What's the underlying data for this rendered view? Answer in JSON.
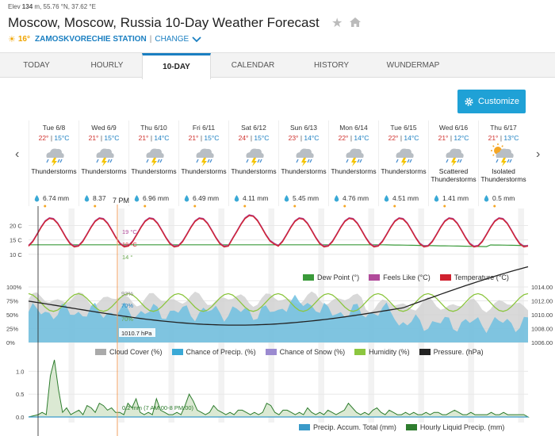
{
  "header": {
    "elev_label": "Elev",
    "elev_value": "134",
    "elev_unit": "m",
    "coords": "55.76 °N, 37.62 °E",
    "title": "Moscow, Moscow, Russia 10-Day Weather Forecast",
    "current_temp": "16°",
    "station": "ZAMOSKVORECHIE STATION",
    "separator": "|",
    "change_label": "CHANGE"
  },
  "tabs": [
    {
      "label": "TODAY"
    },
    {
      "label": "HOURLY"
    },
    {
      "label": "10-DAY"
    },
    {
      "label": "CALENDAR"
    },
    {
      "label": "HISTORY"
    },
    {
      "label": "WUNDERMAP"
    }
  ],
  "customize_label": "Customize",
  "days": [
    {
      "name": "Tue 6/8",
      "hi": "22°",
      "lo": "15°C",
      "cond1": "Thunderstorms",
      "cond2": "",
      "precip": "6.74 mm",
      "icon": "thunderstorm-icon"
    },
    {
      "name": "Wed 6/9",
      "hi": "21°",
      "lo": "15°C",
      "cond1": "Thunderstorms",
      "cond2": "",
      "precip": "8.37",
      "icon": "thunderstorm-icon"
    },
    {
      "name": "Thu 6/10",
      "hi": "21°",
      "lo": "14°C",
      "cond1": "Thunderstorms",
      "cond2": "",
      "precip": "6.96 mm",
      "icon": "thunderstorm-icon"
    },
    {
      "name": "Fri 6/11",
      "hi": "21°",
      "lo": "15°C",
      "cond1": "Thunderstorms",
      "cond2": "",
      "precip": "6.49 mm",
      "icon": "thunderstorm-icon"
    },
    {
      "name": "Sat 6/12",
      "hi": "24°",
      "lo": "15°C",
      "cond1": "Thunderstorms",
      "cond2": "",
      "precip": "4.11 mm",
      "icon": "thunderstorm-icon"
    },
    {
      "name": "Sun 6/13",
      "hi": "23°",
      "lo": "14°C",
      "cond1": "Thunderstorms",
      "cond2": "",
      "precip": "5.45 mm",
      "icon": "thunderstorm-icon"
    },
    {
      "name": "Mon 6/14",
      "hi": "22°",
      "lo": "14°C",
      "cond1": "Thunderstorms",
      "cond2": "",
      "precip": "4.76 mm",
      "icon": "thunderstorm-icon"
    },
    {
      "name": "Tue 6/15",
      "hi": "22°",
      "lo": "14°C",
      "cond1": "Thunderstorms",
      "cond2": "",
      "precip": "4.51 mm",
      "icon": "thunderstorm-icon"
    },
    {
      "name": "Wed 6/16",
      "hi": "21°",
      "lo": "12°C",
      "cond1": "Scattered",
      "cond2": "Thunderstorms",
      "precip": "1.41 mm",
      "icon": "thunderstorm-icon"
    },
    {
      "name": "Thu 6/17",
      "hi": "21°",
      "lo": "13°C",
      "cond1": "Isolated",
      "cond2": "Thunderstorms",
      "precip": "0.5 mm",
      "icon": "sun-thunderstorm-icon"
    }
  ],
  "cursor_time": "7 PM",
  "temp_chart": {
    "y_ticks": [
      "20 C",
      "15 C",
      "10 C"
    ],
    "readout_feels": "19 °C",
    "readout_temp": "19 °C",
    "readout_dew": "14 °",
    "legend": [
      {
        "label": "Dew Point (°)",
        "color": "#3a9a3a"
      },
      {
        "label": "Feels Like (°C)",
        "color": "#b04a9a"
      },
      {
        "label": "Temperature (°C)",
        "color": "#d0212f"
      }
    ],
    "colors": {
      "temp": "#d0212f",
      "feels": "#b04a9a",
      "dew": "#3a9a3a"
    }
  },
  "cloud_chart": {
    "y_ticks_left": [
      "100%",
      "75%",
      "50%",
      "25%",
      "0%"
    ],
    "y_ticks_right": [
      "1014.00",
      "1012.00",
      "1010.00",
      "1008.00",
      "1006.00"
    ],
    "readout_cloud": "93%",
    "readout_precip": "70%",
    "readout_humidity": "70%",
    "readout_pressure": "1010.7 hPa",
    "legend": [
      {
        "label": "Cloud Cover (%)",
        "color": "#aaaaaa"
      },
      {
        "label": "Chance of Precip. (%)",
        "color": "#3aa9d6"
      },
      {
        "label": "Chance of Snow (%)",
        "color": "#9b8ad0"
      },
      {
        "label": "Humidity (%)",
        "color": "#8cc63f"
      },
      {
        "label": "Pressure. (hPa)",
        "color": "#222222"
      }
    ]
  },
  "precip_chart": {
    "y_ticks": [
      "1.0",
      "0.5",
      "0.0"
    ],
    "readout": "0.2 mm (7 AM:00-8 PM:00)",
    "legend": [
      {
        "label": "Precip. Accum. Total (mm)",
        "color": "#3a9ac9"
      },
      {
        "label": "Hourly Liquid Precip. (mm)",
        "color": "#2e7d2e"
      }
    ]
  }
}
